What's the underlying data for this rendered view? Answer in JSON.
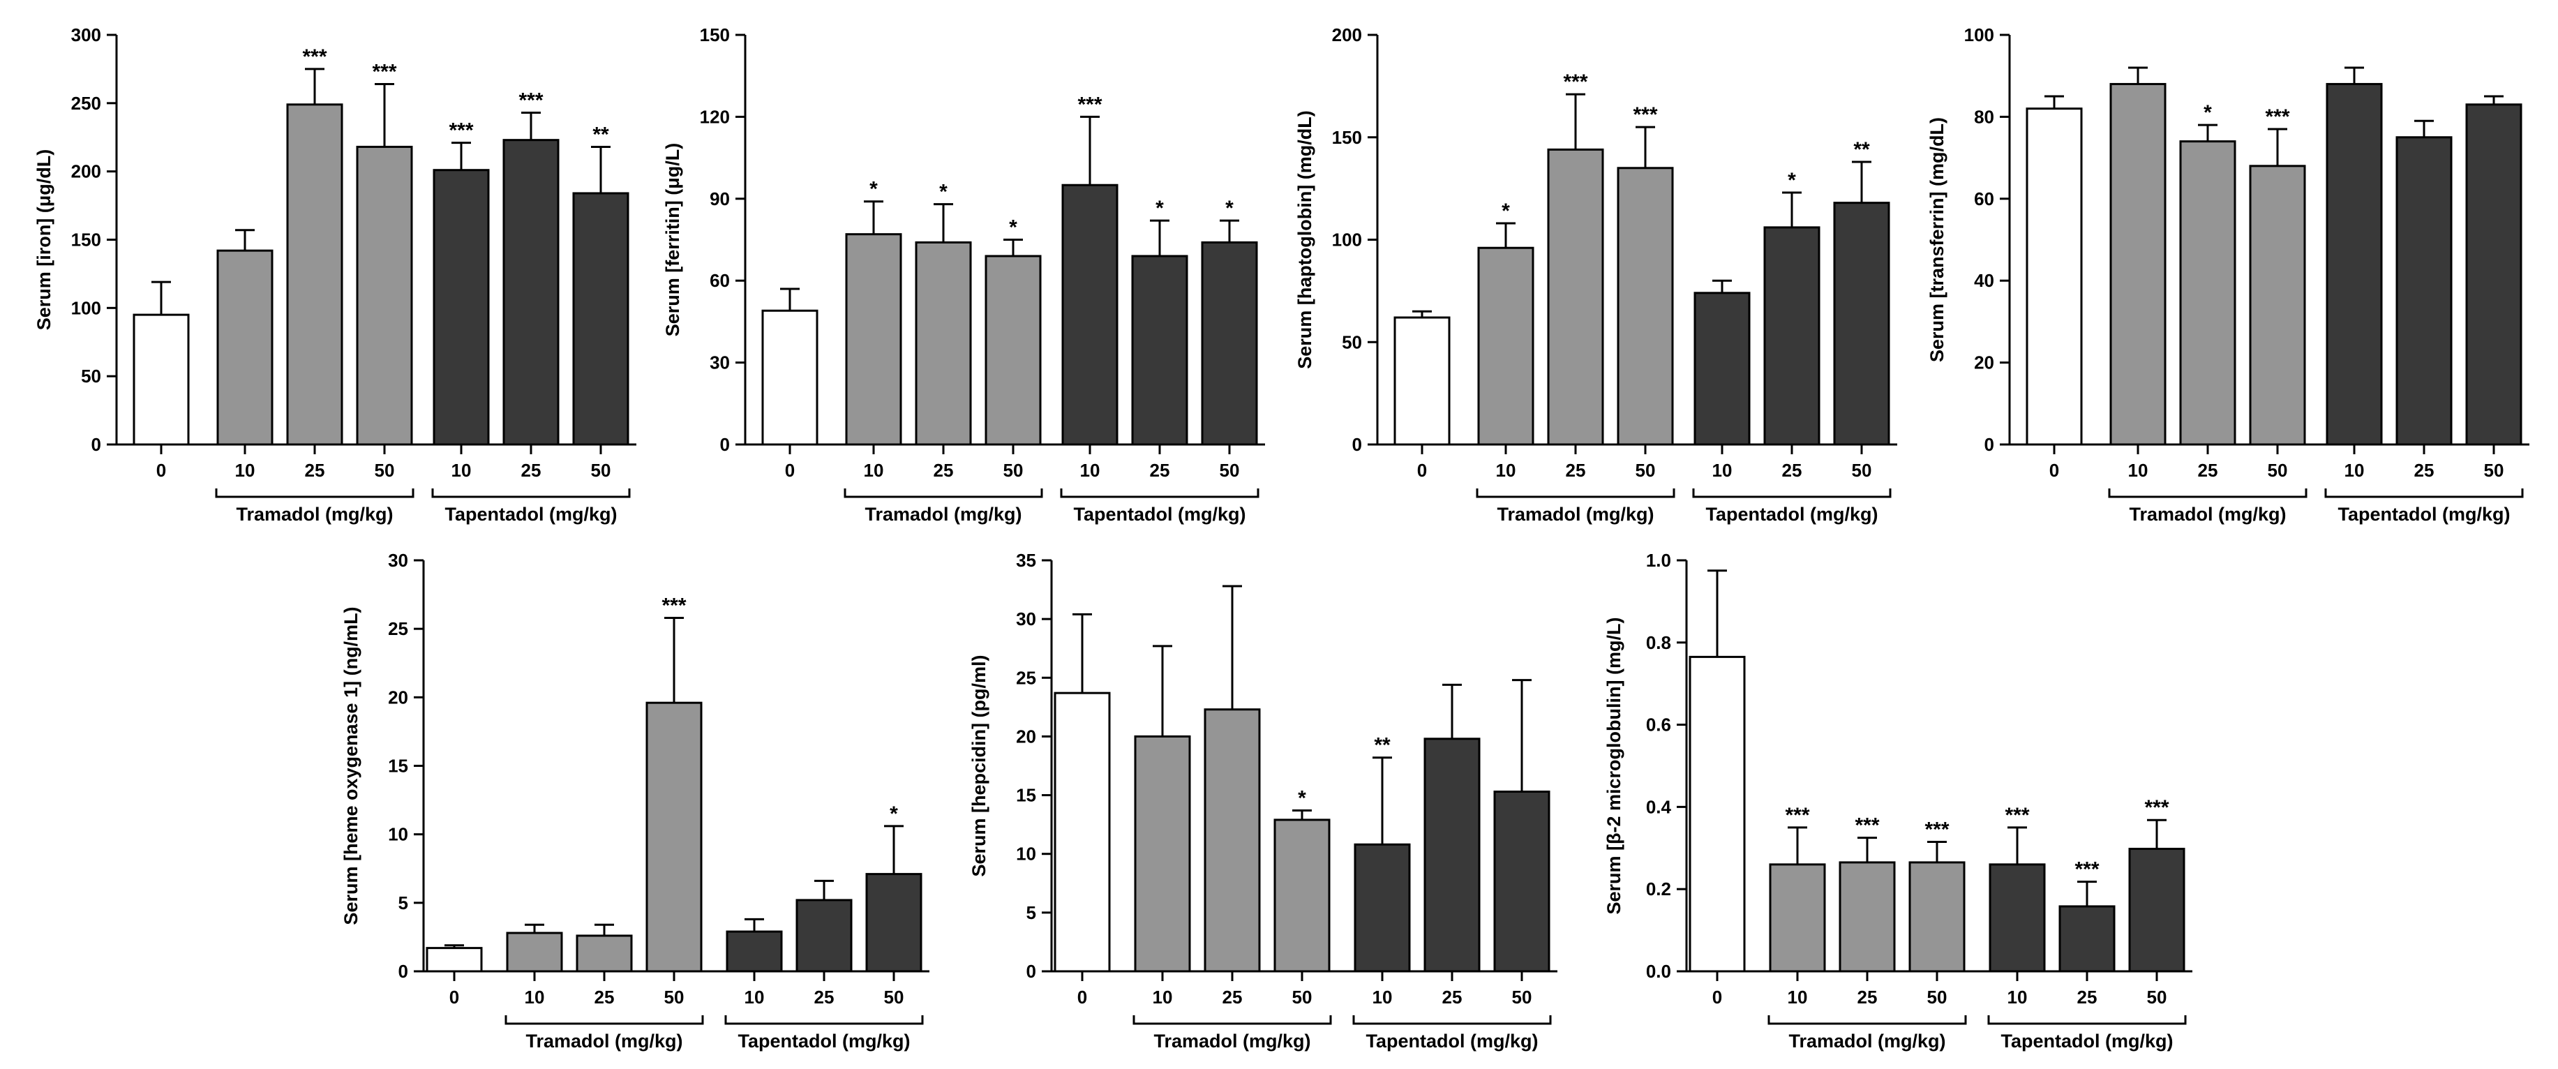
{
  "colors": {
    "control": "#ffffff",
    "tramadol": "#959595",
    "tapentadol": "#393939",
    "stroke": "#000000"
  },
  "chart_data": [
    {
      "type": "bar",
      "ylabel": "Serum [iron] (μg/dL)",
      "ylim": [
        0,
        300
      ],
      "yticks": [
        "0",
        "50",
        "100",
        "150",
        "200",
        "250",
        "300"
      ],
      "categories": [
        "0",
        "10",
        "25",
        "50",
        "10",
        "25",
        "50"
      ],
      "groups": [
        "control",
        "tramadol",
        "tramadol",
        "tramadol",
        "tapentadol",
        "tapentadol",
        "tapentadol"
      ],
      "group_labels": [
        "Tramadol (mg/kg)",
        "Tapentadol (mg/kg)"
      ],
      "values": [
        95,
        142,
        249,
        218,
        201,
        223,
        184
      ],
      "errors": [
        24,
        15,
        26,
        46,
        20,
        20,
        34
      ],
      "significance": [
        "",
        "",
        "***",
        "***",
        "***",
        "***",
        "**"
      ]
    },
    {
      "type": "bar",
      "ylabel": "Serum [ferritin] (μg/L)",
      "ylim": [
        0,
        150
      ],
      "yticks": [
        "0",
        "30",
        "60",
        "90",
        "120",
        "150"
      ],
      "categories": [
        "0",
        "10",
        "25",
        "50",
        "10",
        "25",
        "50"
      ],
      "groups": [
        "control",
        "tramadol",
        "tramadol",
        "tramadol",
        "tapentadol",
        "tapentadol",
        "tapentadol"
      ],
      "group_labels": [
        "Tramadol (mg/kg)",
        "Tapentadol (mg/kg)"
      ],
      "values": [
        49,
        77,
        74,
        69,
        95,
        69,
        74
      ],
      "errors": [
        8,
        12,
        14,
        6,
        25,
        13,
        8
      ],
      "significance": [
        "",
        "*",
        "*",
        "*",
        "***",
        "*",
        "*"
      ]
    },
    {
      "type": "bar",
      "ylabel": "Serum [haptoglobin] (mg/dL)",
      "ylim": [
        0,
        200
      ],
      "yticks": [
        "0",
        "50",
        "100",
        "150",
        "200"
      ],
      "categories": [
        "0",
        "10",
        "25",
        "50",
        "10",
        "25",
        "50"
      ],
      "groups": [
        "control",
        "tramadol",
        "tramadol",
        "tramadol",
        "tapentadol",
        "tapentadol",
        "tapentadol"
      ],
      "group_labels": [
        "Tramadol (mg/kg)",
        "Tapentadol (mg/kg)"
      ],
      "values": [
        62,
        96,
        144,
        135,
        74,
        106,
        118
      ],
      "errors": [
        3,
        12,
        27,
        20,
        6,
        17,
        20
      ],
      "significance": [
        "",
        "*",
        "***",
        "***",
        "",
        "*",
        "**"
      ]
    },
    {
      "type": "bar",
      "ylabel": "Serum [transferrin] (mg/dL)",
      "ylim": [
        0,
        100
      ],
      "yticks": [
        "0",
        "20",
        "40",
        "60",
        "80",
        "100"
      ],
      "categories": [
        "0",
        "10",
        "25",
        "50",
        "10",
        "25",
        "50"
      ],
      "groups": [
        "control",
        "tramadol",
        "tramadol",
        "tramadol",
        "tapentadol",
        "tapentadol",
        "tapentadol"
      ],
      "group_labels": [
        "Tramadol (mg/kg)",
        "Tapentadol (mg/kg)"
      ],
      "values": [
        82,
        88,
        74,
        68,
        88,
        75,
        83
      ],
      "errors": [
        3,
        4,
        4,
        9,
        4,
        4,
        2
      ],
      "significance": [
        "",
        "",
        "*",
        "***",
        "",
        "",
        ""
      ]
    },
    {
      "type": "bar",
      "ylabel": "Serum [heme oxygenase 1] (ng/mL)",
      "ylim": [
        0,
        30
      ],
      "yticks": [
        "0",
        "5",
        "10",
        "15",
        "20",
        "25",
        "30"
      ],
      "categories": [
        "0",
        "10",
        "25",
        "50",
        "10",
        "25",
        "50"
      ],
      "groups": [
        "control",
        "tramadol",
        "tramadol",
        "tramadol",
        "tapentadol",
        "tapentadol",
        "tapentadol"
      ],
      "group_labels": [
        "Tramadol (mg/kg)",
        "Tapentadol (mg/kg)"
      ],
      "values": [
        1.7,
        2.8,
        2.6,
        19.6,
        2.9,
        5.2,
        7.1
      ],
      "errors": [
        0.2,
        0.6,
        0.8,
        6.2,
        0.9,
        1.4,
        3.5
      ],
      "significance": [
        "",
        "",
        "",
        "***",
        "",
        "",
        "*"
      ]
    },
    {
      "type": "bar",
      "ylabel": "Serum [hepcidin] (pg/ml)",
      "ylim": [
        0,
        35
      ],
      "yticks": [
        "0",
        "5",
        "10",
        "15",
        "20",
        "25",
        "30",
        "35"
      ],
      "categories": [
        "0",
        "10",
        "25",
        "50",
        "10",
        "25",
        "50"
      ],
      "groups": [
        "control",
        "tramadol",
        "tramadol",
        "tramadol",
        "tapentadol",
        "tapentadol",
        "tapentadol"
      ],
      "group_labels": [
        "Tramadol (mg/kg)",
        "Tapentadol (mg/kg)"
      ],
      "values": [
        23.7,
        20.0,
        22.3,
        12.9,
        10.8,
        19.8,
        15.3
      ],
      "errors": [
        6.7,
        7.7,
        10.5,
        0.8,
        7.4,
        4.6,
        9.5
      ],
      "significance": [
        "",
        "",
        "",
        "*",
        "**",
        "",
        ""
      ]
    },
    {
      "type": "bar",
      "ylabel": "Serum [β-2 microglobulin] (mg/L)",
      "ylim": [
        0,
        1.0
      ],
      "yticks": [
        "0.0",
        "0.2",
        "0.4",
        "0.6",
        "0.8",
        "1.0"
      ],
      "categories": [
        "0",
        "10",
        "25",
        "50",
        "10",
        "25",
        "50"
      ],
      "groups": [
        "control",
        "tramadol",
        "tramadol",
        "tramadol",
        "tapentadol",
        "tapentadol",
        "tapentadol"
      ],
      "group_labels": [
        "Tramadol (mg/kg)",
        "Tapentadol (mg/kg)"
      ],
      "values": [
        0.765,
        0.26,
        0.265,
        0.265,
        0.26,
        0.158,
        0.298
      ],
      "errors": [
        0.21,
        0.09,
        0.06,
        0.05,
        0.09,
        0.06,
        0.07
      ],
      "significance": [
        "",
        "***",
        "***",
        "***",
        "***",
        "***",
        "***"
      ]
    }
  ]
}
